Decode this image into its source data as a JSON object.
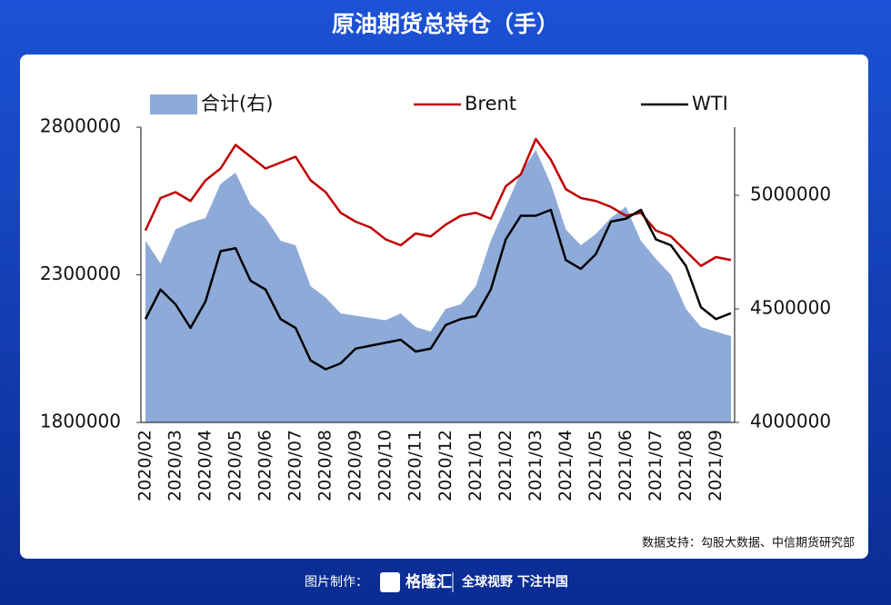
{
  "chart_data": {
    "type": "line",
    "title": "原油期货总持仓（手）",
    "source": "数据支持：勾股大数据、中信期货研究部",
    "categories": [
      "2020/02",
      null,
      "2020/03",
      null,
      "2020/04",
      null,
      "2020/05",
      null,
      "2020/06",
      null,
      "2020/07",
      null,
      "2020/08",
      null,
      "2020/09",
      null,
      "2020/10",
      null,
      "2020/11",
      null,
      "2020/12",
      null,
      "2021/01",
      null,
      "2021/02",
      null,
      "2021/03",
      null,
      "2021/04",
      null,
      "2021/05",
      null,
      "2021/06",
      null,
      "2021/07",
      null,
      "2021/08",
      null,
      "2021/09",
      null
    ],
    "ylim": [
      1800000,
      2800000
    ],
    "yticks": [
      1800000,
      2300000,
      2800000
    ],
    "y2lim": [
      4000000,
      5300000
    ],
    "y2ticks": [
      4000000,
      4500000,
      5000000
    ],
    "series": [
      {
        "name": "合计(右)",
        "type": "area",
        "axis": "y2",
        "color": "#8eaad8",
        "values": [
          4800000,
          4700000,
          4850000,
          4880000,
          4900000,
          5050000,
          5100000,
          4960000,
          4900000,
          4800000,
          4780000,
          4600000,
          4550000,
          4480000,
          4470000,
          4460000,
          4450000,
          4480000,
          4420000,
          4400000,
          4500000,
          4520000,
          4600000,
          4800000,
          4950000,
          5100000,
          5200000,
          5050000,
          4850000,
          4780000,
          4830000,
          4900000,
          4950000,
          4800000,
          4720000,
          4650000,
          4500000,
          4420000,
          4400000,
          4380000
        ]
      },
      {
        "name": "Brent",
        "type": "line",
        "color": "#c00000",
        "values": [
          2450000,
          2560000,
          2580000,
          2550000,
          2620000,
          2660000,
          2740000,
          2700000,
          2660000,
          2680000,
          2700000,
          2620000,
          2580000,
          2510000,
          2480000,
          2460000,
          2420000,
          2400000,
          2440000,
          2430000,
          2470000,
          2500000,
          2510000,
          2490000,
          2600000,
          2640000,
          2760000,
          2690000,
          2590000,
          2560000,
          2550000,
          2530000,
          2500000,
          2510000,
          2450000,
          2430000,
          2380000,
          2330000,
          2360000,
          2350000
        ]
      },
      {
        "name": "WTI",
        "type": "line",
        "color": "#000000",
        "values": [
          2150000,
          2250000,
          2200000,
          2120000,
          2210000,
          2380000,
          2390000,
          2280000,
          2250000,
          2150000,
          2120000,
          2010000,
          1980000,
          2000000,
          2050000,
          2060000,
          2070000,
          2080000,
          2040000,
          2050000,
          2130000,
          2150000,
          2160000,
          2250000,
          2420000,
          2500000,
          2500000,
          2520000,
          2350000,
          2320000,
          2370000,
          2480000,
          2490000,
          2520000,
          2420000,
          2400000,
          2330000,
          2190000,
          2150000,
          2170000
        ]
      }
    ]
  },
  "footer": {
    "label": "图片制作：",
    "brand": "格隆汇",
    "slogan": "全球视野 下注中国"
  }
}
